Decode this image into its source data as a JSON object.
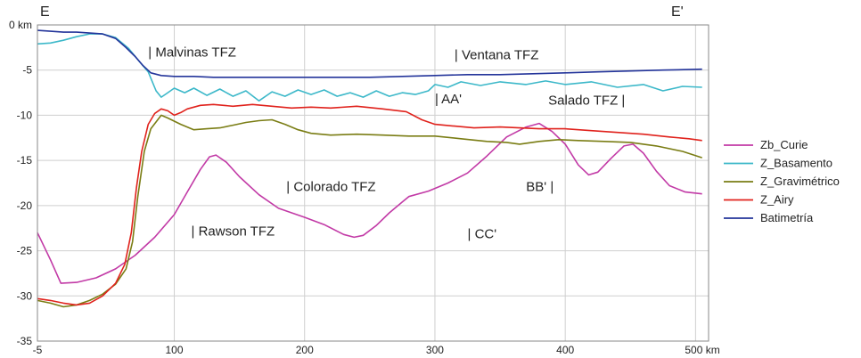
{
  "chart_data": {
    "type": "line",
    "profile_labels": {
      "start": "E",
      "end": "E'"
    },
    "xlim": [
      -5,
      510
    ],
    "ylim": [
      -35,
      0
    ],
    "grid": true,
    "legend_position": "right",
    "x_ticks": [
      {
        "v": -5,
        "label": "-5"
      },
      {
        "v": 100,
        "label": "100"
      },
      {
        "v": 200,
        "label": "200"
      },
      {
        "v": 300,
        "label": "300"
      },
      {
        "v": 400,
        "label": "400"
      },
      {
        "v": 500,
        "label": "500 km"
      }
    ],
    "y_ticks": [
      {
        "v": 0,
        "label": "0 km"
      },
      {
        "v": -5,
        "label": "-5"
      },
      {
        "v": -10,
        "label": "-10"
      },
      {
        "v": -15,
        "label": "-15"
      },
      {
        "v": -20,
        "label": "-20"
      },
      {
        "v": -25,
        "label": "-25"
      },
      {
        "v": -30,
        "label": "-30"
      },
      {
        "v": -35,
        "label": "-35"
      }
    ],
    "annotations": [
      {
        "text": "| Malvinas TFZ",
        "x": 80,
        "y": -3.5
      },
      {
        "text": "| Ventana TFZ",
        "x": 315,
        "y": -3.8
      },
      {
        "text": "| AA'",
        "x": 300,
        "y": -8.7
      },
      {
        "text": "Salado TFZ |",
        "x": 387,
        "y": -8.8
      },
      {
        "text": "| Colorado TFZ",
        "x": 186,
        "y": -18.4
      },
      {
        "text": "BB' |",
        "x": 370,
        "y": -18.4
      },
      {
        "text": "| Rawson TFZ",
        "x": 113,
        "y": -23.3
      },
      {
        "text": "| CC'",
        "x": 325,
        "y": -23.6
      }
    ],
    "series": [
      {
        "name": "Zb_Curie",
        "color": "#c23aa6",
        "points": [
          [
            -5,
            -23
          ],
          [
            5,
            -26
          ],
          [
            13,
            -28.6
          ],
          [
            25,
            -28.5
          ],
          [
            40,
            -28
          ],
          [
            55,
            -27
          ],
          [
            70,
            -25.5
          ],
          [
            85,
            -23.5
          ],
          [
            100,
            -21
          ],
          [
            110,
            -18.5
          ],
          [
            120,
            -16
          ],
          [
            127,
            -14.6
          ],
          [
            132,
            -14.4
          ],
          [
            140,
            -15.2
          ],
          [
            150,
            -16.8
          ],
          [
            165,
            -18.8
          ],
          [
            180,
            -20.3
          ],
          [
            200,
            -21.3
          ],
          [
            215,
            -22.1
          ],
          [
            230,
            -23.2
          ],
          [
            238,
            -23.5
          ],
          [
            245,
            -23.3
          ],
          [
            255,
            -22.2
          ],
          [
            265,
            -20.8
          ],
          [
            275,
            -19.6
          ],
          [
            280,
            -19
          ],
          [
            295,
            -18.4
          ],
          [
            310,
            -17.5
          ],
          [
            325,
            -16.4
          ],
          [
            340,
            -14.5
          ],
          [
            355,
            -12.4
          ],
          [
            370,
            -11.3
          ],
          [
            380,
            -10.9
          ],
          [
            390,
            -11.8
          ],
          [
            400,
            -13.2
          ],
          [
            410,
            -15.5
          ],
          [
            418,
            -16.6
          ],
          [
            425,
            -16.3
          ],
          [
            435,
            -14.8
          ],
          [
            445,
            -13.4
          ],
          [
            452,
            -13.2
          ],
          [
            460,
            -14.2
          ],
          [
            470,
            -16.2
          ],
          [
            480,
            -17.8
          ],
          [
            492,
            -18.5
          ],
          [
            505,
            -18.7
          ]
        ]
      },
      {
        "name": "Z_Basamento",
        "color": "#3cb8c9",
        "points": [
          [
            -5,
            -2.1
          ],
          [
            5,
            -2
          ],
          [
            15,
            -1.7
          ],
          [
            25,
            -1.3
          ],
          [
            35,
            -1
          ],
          [
            45,
            -1
          ],
          [
            55,
            -1.4
          ],
          [
            65,
            -2.6
          ],
          [
            73,
            -4
          ],
          [
            80,
            -5.2
          ],
          [
            86,
            -7.3
          ],
          [
            90,
            -8
          ],
          [
            94,
            -7.6
          ],
          [
            100,
            -7
          ],
          [
            108,
            -7.5
          ],
          [
            115,
            -7
          ],
          [
            125,
            -7.8
          ],
          [
            135,
            -7.1
          ],
          [
            145,
            -7.9
          ],
          [
            155,
            -7.3
          ],
          [
            165,
            -8.4
          ],
          [
            175,
            -7.4
          ],
          [
            185,
            -7.9
          ],
          [
            195,
            -7.2
          ],
          [
            205,
            -7.7
          ],
          [
            215,
            -7.2
          ],
          [
            225,
            -7.9
          ],
          [
            235,
            -7.5
          ],
          [
            245,
            -8
          ],
          [
            255,
            -7.3
          ],
          [
            265,
            -7.9
          ],
          [
            275,
            -7.5
          ],
          [
            285,
            -7.7
          ],
          [
            295,
            -7.3
          ],
          [
            300,
            -6.6
          ],
          [
            310,
            -6.9
          ],
          [
            320,
            -6.3
          ],
          [
            335,
            -6.7
          ],
          [
            350,
            -6.3
          ],
          [
            370,
            -6.6
          ],
          [
            385,
            -6.2
          ],
          [
            400,
            -6.6
          ],
          [
            420,
            -6.3
          ],
          [
            440,
            -6.9
          ],
          [
            460,
            -6.6
          ],
          [
            475,
            -7.3
          ],
          [
            490,
            -6.8
          ],
          [
            505,
            -6.9
          ]
        ]
      },
      {
        "name": "Z_Gravimétrico",
        "color": "#7a7d14",
        "points": [
          [
            -5,
            -30.5
          ],
          [
            5,
            -30.8
          ],
          [
            15,
            -31.2
          ],
          [
            25,
            -31
          ],
          [
            35,
            -30.5
          ],
          [
            45,
            -29.8
          ],
          [
            55,
            -28.7
          ],
          [
            63,
            -27
          ],
          [
            68,
            -24
          ],
          [
            72,
            -19
          ],
          [
            77,
            -14
          ],
          [
            82,
            -11.5
          ],
          [
            90,
            -10
          ],
          [
            95,
            -10.3
          ],
          [
            105,
            -11
          ],
          [
            115,
            -11.6
          ],
          [
            125,
            -11.5
          ],
          [
            135,
            -11.4
          ],
          [
            145,
            -11.1
          ],
          [
            155,
            -10.8
          ],
          [
            165,
            -10.6
          ],
          [
            175,
            -10.5
          ],
          [
            185,
            -11
          ],
          [
            195,
            -11.6
          ],
          [
            205,
            -12
          ],
          [
            220,
            -12.2
          ],
          [
            240,
            -12.1
          ],
          [
            260,
            -12.2
          ],
          [
            280,
            -12.3
          ],
          [
            300,
            -12.3
          ],
          [
            320,
            -12.6
          ],
          [
            340,
            -12.9
          ],
          [
            355,
            -13
          ],
          [
            365,
            -13.2
          ],
          [
            380,
            -12.9
          ],
          [
            395,
            -12.7
          ],
          [
            410,
            -12.8
          ],
          [
            430,
            -12.9
          ],
          [
            450,
            -13
          ],
          [
            470,
            -13.4
          ],
          [
            490,
            -14
          ],
          [
            505,
            -14.7
          ]
        ]
      },
      {
        "name": "Z_Airy",
        "color": "#e0221c",
        "points": [
          [
            -5,
            -30.3
          ],
          [
            5,
            -30.5
          ],
          [
            15,
            -30.8
          ],
          [
            25,
            -31
          ],
          [
            35,
            -30.8
          ],
          [
            45,
            -30
          ],
          [
            55,
            -28.6
          ],
          [
            62,
            -26.5
          ],
          [
            67,
            -23
          ],
          [
            71,
            -18
          ],
          [
            75,
            -14
          ],
          [
            80,
            -11
          ],
          [
            85,
            -9.8
          ],
          [
            90,
            -9.3
          ],
          [
            95,
            -9.5
          ],
          [
            100,
            -10
          ],
          [
            105,
            -9.7
          ],
          [
            110,
            -9.3
          ],
          [
            120,
            -8.9
          ],
          [
            130,
            -8.8
          ],
          [
            145,
            -9
          ],
          [
            160,
            -8.8
          ],
          [
            175,
            -9
          ],
          [
            190,
            -9.2
          ],
          [
            205,
            -9.1
          ],
          [
            220,
            -9.2
          ],
          [
            240,
            -9
          ],
          [
            260,
            -9.3
          ],
          [
            278,
            -9.6
          ],
          [
            290,
            -10.5
          ],
          [
            300,
            -11
          ],
          [
            315,
            -11.2
          ],
          [
            330,
            -11.4
          ],
          [
            350,
            -11.3
          ],
          [
            365,
            -11.4
          ],
          [
            380,
            -11.5
          ],
          [
            400,
            -11.5
          ],
          [
            420,
            -11.7
          ],
          [
            440,
            -11.9
          ],
          [
            460,
            -12.1
          ],
          [
            480,
            -12.4
          ],
          [
            495,
            -12.6
          ],
          [
            505,
            -12.8
          ]
        ]
      },
      {
        "name": "Batimetría",
        "color": "#23349a",
        "points": [
          [
            -5,
            -0.6
          ],
          [
            5,
            -0.7
          ],
          [
            15,
            -0.8
          ],
          [
            25,
            -0.8
          ],
          [
            35,
            -0.9
          ],
          [
            45,
            -1
          ],
          [
            55,
            -1.5
          ],
          [
            63,
            -2.5
          ],
          [
            70,
            -3.5
          ],
          [
            76,
            -4.5
          ],
          [
            82,
            -5.3
          ],
          [
            90,
            -5.6
          ],
          [
            100,
            -5.7
          ],
          [
            115,
            -5.7
          ],
          [
            130,
            -5.8
          ],
          [
            150,
            -5.8
          ],
          [
            175,
            -5.8
          ],
          [
            200,
            -5.8
          ],
          [
            225,
            -5.8
          ],
          [
            250,
            -5.8
          ],
          [
            275,
            -5.7
          ],
          [
            300,
            -5.6
          ],
          [
            325,
            -5.5
          ],
          [
            350,
            -5.5
          ],
          [
            375,
            -5.4
          ],
          [
            400,
            -5.3
          ],
          [
            425,
            -5.2
          ],
          [
            450,
            -5.1
          ],
          [
            475,
            -5
          ],
          [
            505,
            -4.9
          ]
        ]
      }
    ],
    "legend_order": [
      "Zb_Curie",
      "Z_Basamento",
      "Z_Gravimétrico",
      "Z_Airy",
      "Batimetría"
    ]
  }
}
